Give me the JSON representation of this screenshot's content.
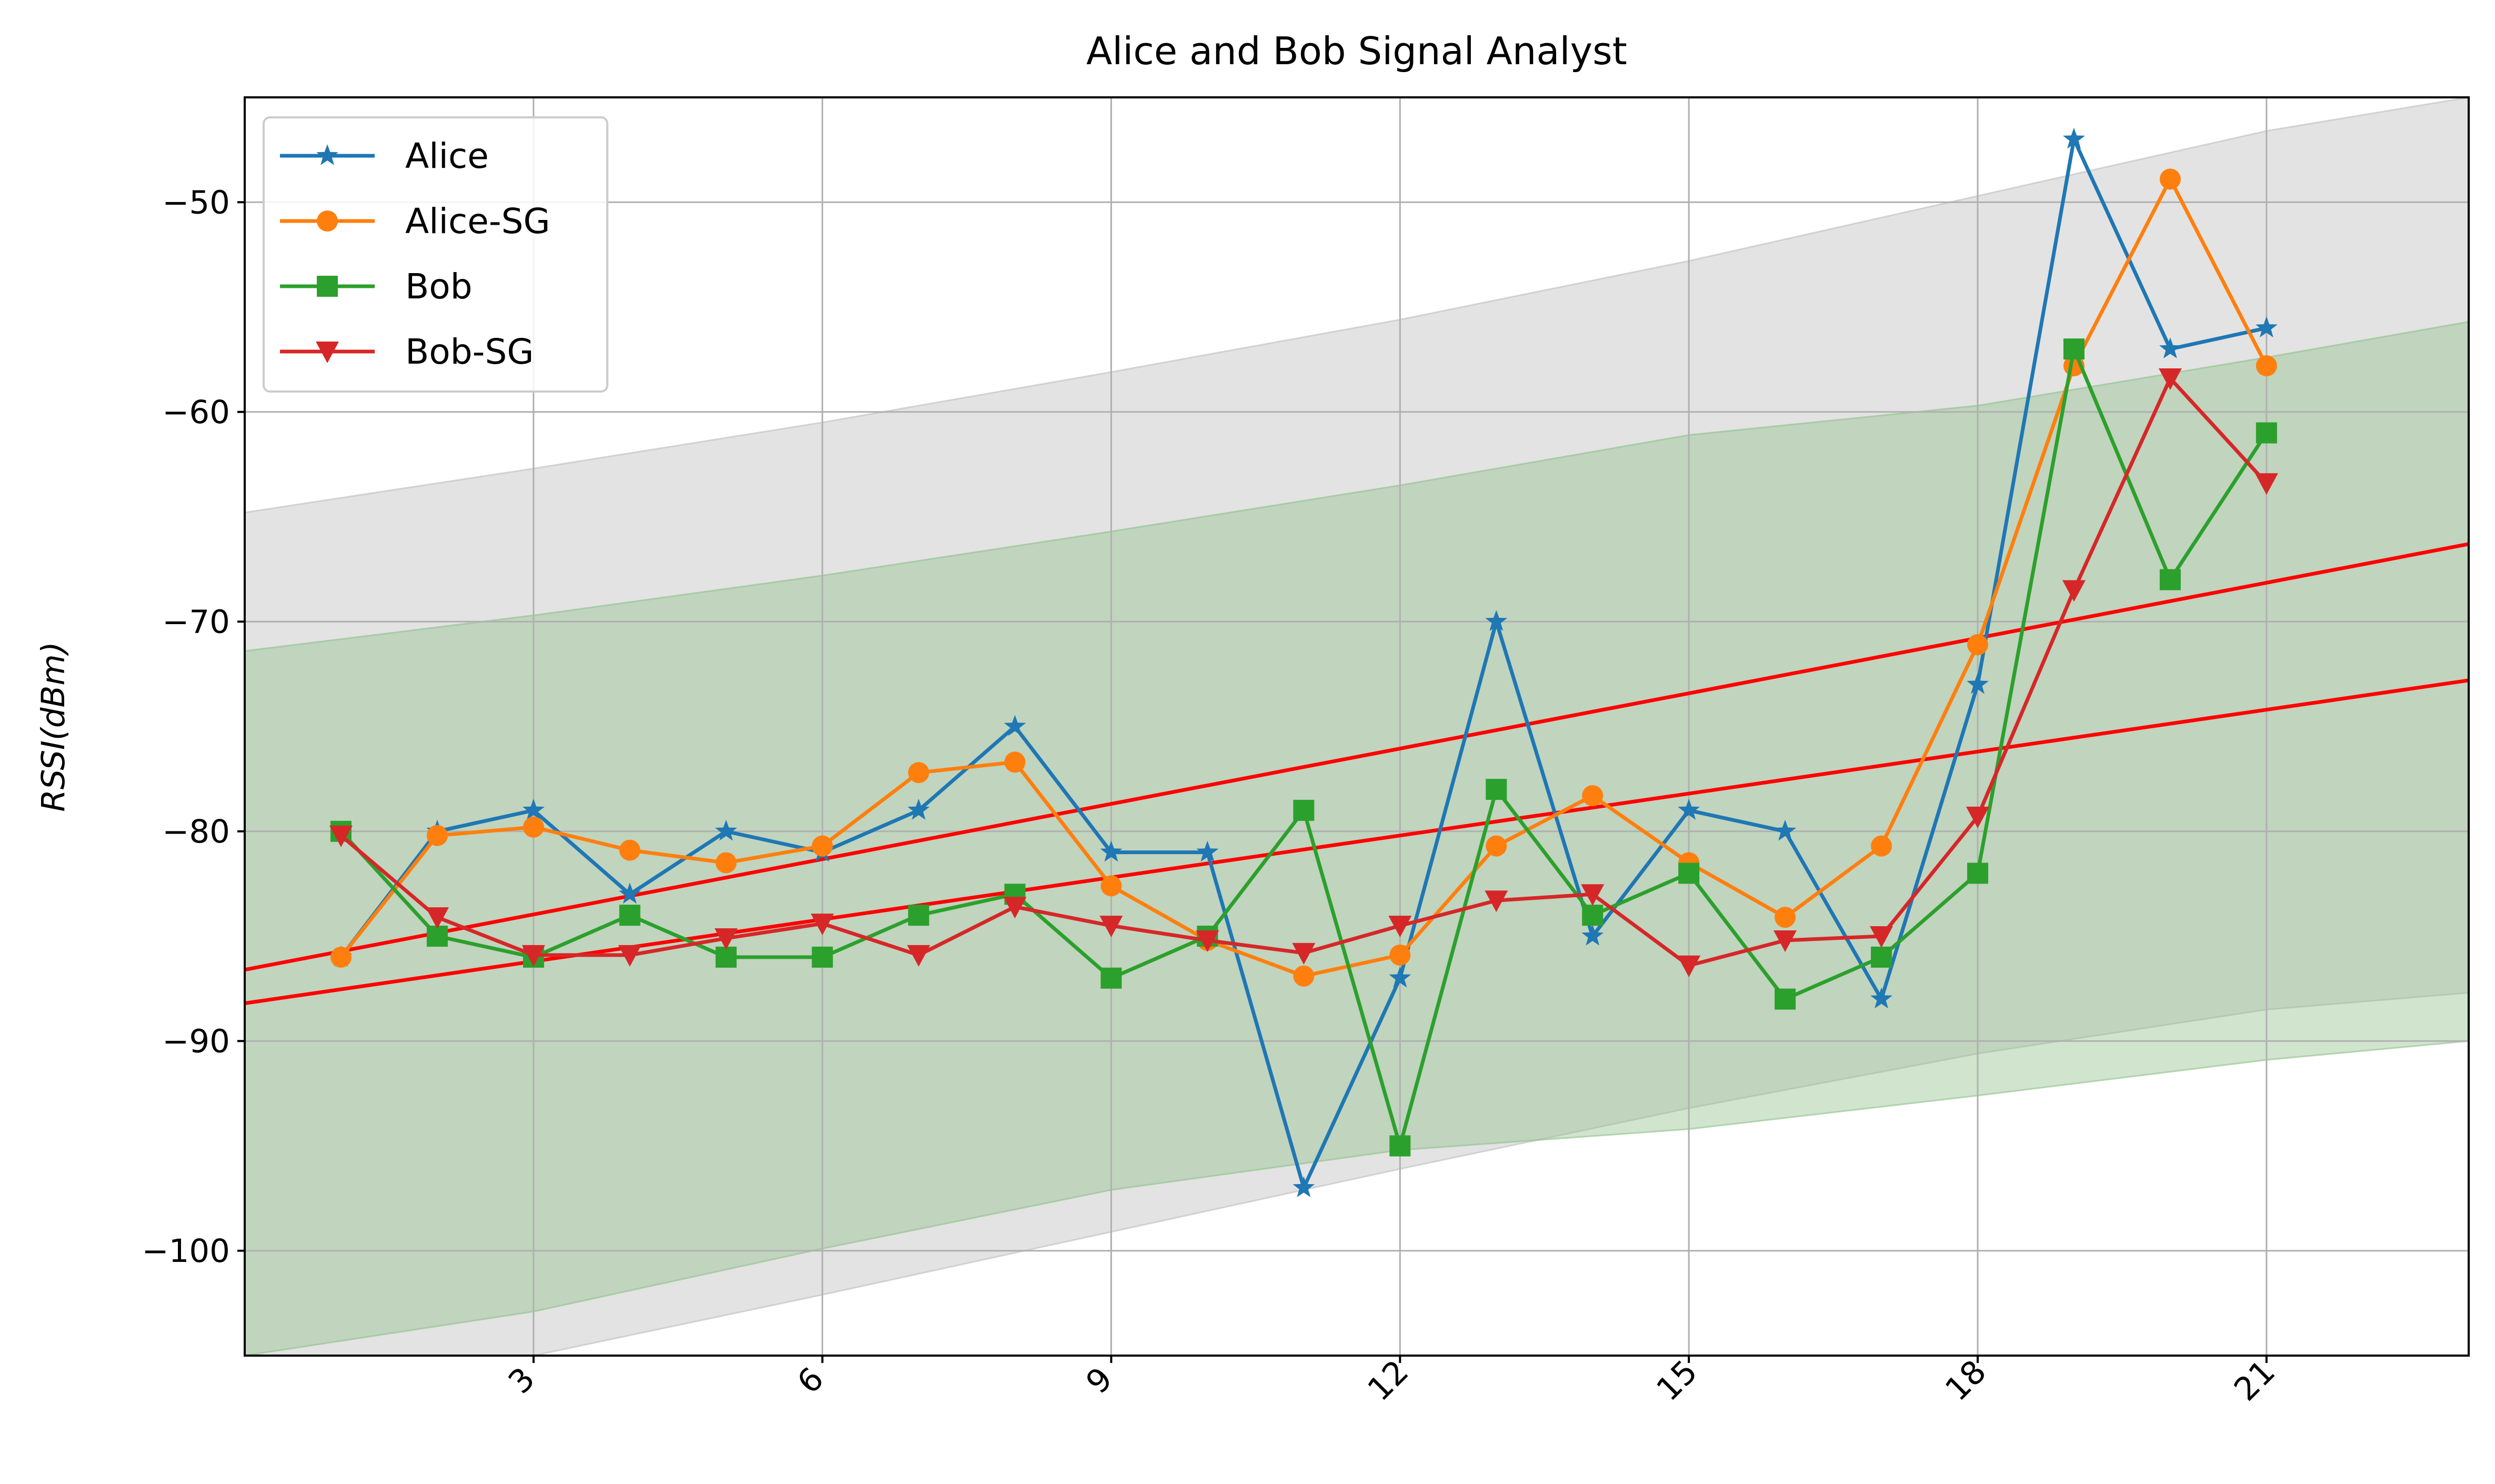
{
  "chart_data": {
    "type": "line",
    "title": "Alice and Bob Signal Analyst",
    "xlabel": "",
    "ylabel": "RSSI(dBm)",
    "xlim": [
      0,
      23.1
    ],
    "ylim": [
      -105,
      -45
    ],
    "x_ticks": [
      3,
      6,
      9,
      12,
      15,
      18,
      21
    ],
    "x_tick_labels": [
      "3",
      "6",
      "9",
      "12",
      "15",
      "18",
      "21"
    ],
    "y_ticks": [
      -100,
      -90,
      -80,
      -70,
      -60,
      -50
    ],
    "y_tick_labels": [
      "−100",
      "−90",
      "−80",
      "−70",
      "−60",
      "−50"
    ],
    "grid": true,
    "legend_position": "top-left",
    "x": [
      1,
      2,
      3,
      4,
      5,
      6,
      7,
      8,
      9,
      10,
      11,
      12,
      13,
      14,
      15,
      16,
      17,
      18,
      19,
      20,
      21
    ],
    "series": [
      {
        "name": "Alice",
        "color": "#1f77b4",
        "marker": "star",
        "values": [
          -86,
          -80,
          -79,
          -83,
          -80,
          -81,
          -79,
          -75,
          -81,
          -81,
          -97,
          -87,
          -70,
          -85,
          -79,
          -80,
          -88,
          -73,
          -47,
          -57,
          -56
        ]
      },
      {
        "name": "Alice-SG",
        "color": "#ff7f0e",
        "marker": "circle",
        "values": [
          -86,
          -80.2,
          -79.8,
          -80.9,
          -81.5,
          -80.7,
          -77.2,
          -76.7,
          -82.6,
          -85.2,
          -86.9,
          -85.9,
          -80.7,
          -78.3,
          -81.5,
          -84.1,
          -80.7,
          -71.1,
          -57.8,
          -48.9,
          -57.8
        ]
      },
      {
        "name": "Bob",
        "color": "#2ca02c",
        "marker": "square",
        "values": [
          -80,
          -85,
          -86,
          -84,
          -86,
          -86,
          -84,
          -83,
          -87,
          -85,
          -79,
          -95,
          -78,
          -84,
          -82,
          -88,
          -86,
          -82,
          -57,
          -68,
          -61
        ]
      },
      {
        "name": "Bob-SG",
        "color": "#d62728",
        "marker": "triangle-down",
        "values": [
          -80.2,
          -84.1,
          -85.9,
          -85.9,
          -85.1,
          -84.4,
          -85.9,
          -83.6,
          -84.5,
          -85.2,
          -85.8,
          -84.5,
          -83.3,
          -83.0,
          -86.4,
          -85.2,
          -85.0,
          -79.3,
          -68.5,
          -58.4,
          -63.4
        ]
      }
    ],
    "trend_lines": [
      {
        "color": "#ff0000",
        "x": [
          0,
          23.1
        ],
        "y": [
          -86.6,
          -66.3
        ]
      },
      {
        "color": "#ff0000",
        "x": [
          0,
          23.1
        ],
        "y": [
          -88.2,
          -72.8
        ]
      }
    ],
    "bands": [
      {
        "color": "#bdbdbd",
        "x": [
          0,
          3,
          6,
          9,
          12,
          15,
          18,
          21,
          23.1
        ],
        "upper": [
          -64.8,
          -62.7,
          -60.5,
          -58.1,
          -55.6,
          -52.8,
          -49.7,
          -46.6,
          -44.3
        ],
        "lower": [
          -108.4,
          -105.0,
          -102.1,
          -99.1,
          -96.1,
          -93.2,
          -90.6,
          -88.5,
          -87.7
        ]
      },
      {
        "color": "#8fbf8a",
        "x": [
          0,
          3,
          6,
          9,
          12,
          15,
          18,
          21,
          23.1
        ],
        "upper": [
          -71.4,
          -69.7,
          -67.8,
          -65.7,
          -63.5,
          -61.1,
          -59.7,
          -57.4,
          -55.7
        ],
        "lower": [
          -105.0,
          -102.9,
          -99.9,
          -97.1,
          -95.2,
          -94.2,
          -92.6,
          -90.9,
          -90.0
        ]
      }
    ]
  }
}
